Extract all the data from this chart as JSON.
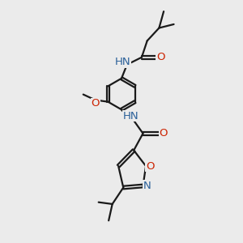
{
  "bg": "#ebebeb",
  "C": "#1a1a1a",
  "N": "#2a6099",
  "O": "#cc2200",
  "lw": 1.6,
  "fs": 9.5,
  "dbo": 0.055
}
